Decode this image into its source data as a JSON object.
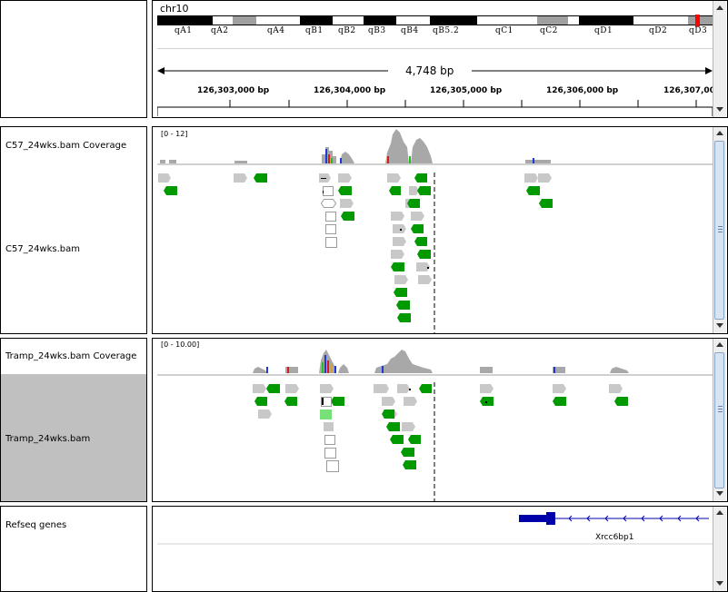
{
  "header": {
    "chromosome": "chr10",
    "span": "4,748 bp",
    "cytobands": [
      "qA1",
      "qA2",
      "qA4",
      "qB1",
      "qB2",
      "qB3",
      "qB4",
      "qB5.2",
      "qC1",
      "qC2",
      "qD1",
      "qD2",
      "qD3"
    ],
    "ruler_ticks": [
      "126,303,000 bp",
      "126,304,000 bp",
      "126,305,000 bp",
      "126,306,000 bp",
      "126,307,00"
    ]
  },
  "tracks": {
    "c57_coverage": {
      "name": "C57_24wks.bam Coverage",
      "range": "[0 - 12]"
    },
    "c57_alignment": {
      "name": "C57_24wks.bam"
    },
    "tramp_coverage": {
      "name": "Tramp_24wks.bam Coverage",
      "range": "[0 - 10.00]"
    },
    "tramp_alignment": {
      "name": "Tramp_24wks.bam"
    },
    "refseq": {
      "name": "Refseq genes",
      "gene": "Xrcc6bp1"
    }
  },
  "colors": {
    "read_forward": "#c8c8c8",
    "read_reverse": "#009900",
    "coverage": "#a8a8a8",
    "gene": "#0000aa",
    "selected_track_bg": "#c0c0c0"
  }
}
